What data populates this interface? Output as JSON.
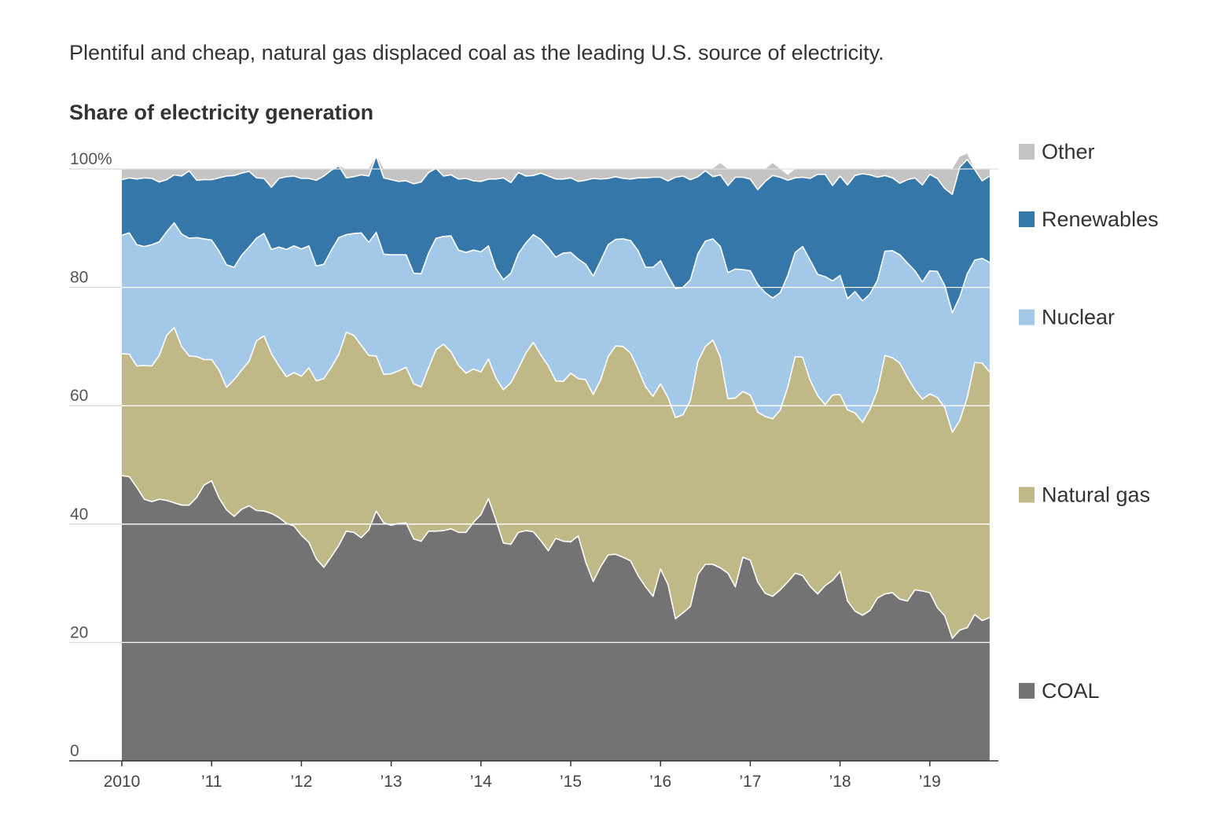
{
  "subtitle": "Plentiful and cheap, natural gas displaced coal as the leading U.S. source of electricity.",
  "chart_data": {
    "type": "area",
    "stacked": true,
    "title": "Share of electricity generation",
    "xlabel": "",
    "ylabel": "",
    "ylim": [
      0,
      100
    ],
    "yticks": [
      {
        "value": 0,
        "label": "0"
      },
      {
        "value": 20,
        "label": "20"
      },
      {
        "value": 40,
        "label": "40"
      },
      {
        "value": 60,
        "label": "60"
      },
      {
        "value": 80,
        "label": "80"
      },
      {
        "value": 100,
        "label": "100%"
      }
    ],
    "xticks": [
      {
        "year": 2010,
        "label": "2010"
      },
      {
        "year": 2011,
        "label": "’11"
      },
      {
        "year": 2012,
        "label": "’12"
      },
      {
        "year": 2013,
        "label": "’13"
      },
      {
        "year": 2014,
        "label": "’14"
      },
      {
        "year": 2015,
        "label": "’15"
      },
      {
        "year": 2016,
        "label": "’16"
      },
      {
        "year": 2017,
        "label": "’17"
      },
      {
        "year": 2018,
        "label": "’18"
      },
      {
        "year": 2019,
        "label": "’19"
      }
    ],
    "x_start": "2010-01",
    "frequency": "monthly",
    "grid": true,
    "legend_position": "right",
    "series": [
      {
        "name": "COAL",
        "color": "#737373",
        "values": [
          48.2,
          48.0,
          46.2,
          44.2,
          43.8,
          44.2,
          44.0,
          43.6,
          43.2,
          43.2,
          44.5,
          46.6,
          47.3,
          44.4,
          42.4,
          41.3,
          42.5,
          43.1,
          42.3,
          42.2,
          41.8,
          41.1,
          40.1,
          39.7,
          38.1,
          36.9,
          34.1,
          32.7,
          34.5,
          36.4,
          38.8,
          38.6,
          37.7,
          39.0,
          42.2,
          40.2,
          39.8,
          40.1,
          40.2,
          37.5,
          37.1,
          38.8,
          38.8,
          38.9,
          39.2,
          38.6,
          38.6,
          40.3,
          41.6,
          44.3,
          40.7,
          36.8,
          36.6,
          38.6,
          38.9,
          38.7,
          37.2,
          35.5,
          37.6,
          37.1,
          37.0,
          38.0,
          33.6,
          30.3,
          32.8,
          34.8,
          34.9,
          34.4,
          33.8,
          31.3,
          29.4,
          27.8,
          32.4,
          29.8,
          24.0,
          25.0,
          26.1,
          31.5,
          33.2,
          33.2,
          32.6,
          31.7,
          29.4,
          34.4,
          33.9,
          30.2,
          28.3,
          27.8,
          28.9,
          30.2,
          31.7,
          31.3,
          29.5,
          28.2,
          29.6,
          30.5,
          32.0,
          27.0,
          25.3,
          24.6,
          25.4,
          27.5,
          28.2,
          28.4,
          27.3,
          27.0,
          28.9,
          28.7,
          28.4,
          25.9,
          24.5,
          20.7,
          22.1,
          22.5,
          24.7,
          23.7,
          24.2
        ]
      },
      {
        "name": "Natural gas",
        "color": "#c0b987",
        "values": [
          20.6,
          20.7,
          20.5,
          22.6,
          22.9,
          24.3,
          27.9,
          29.6,
          26.8,
          25.2,
          23.8,
          21.2,
          20.5,
          21.6,
          20.7,
          23.1,
          23.5,
          24.4,
          28.7,
          29.6,
          27.0,
          25.6,
          24.8,
          25.9,
          26.9,
          29.5,
          30.1,
          31.9,
          32.0,
          32.3,
          33.6,
          33.3,
          32.5,
          29.5,
          26.2,
          25.1,
          25.6,
          25.8,
          26.3,
          26.2,
          26.1,
          27.6,
          30.7,
          31.5,
          29.9,
          28.2,
          26.9,
          25.9,
          24.1,
          23.6,
          24.0,
          25.9,
          27.3,
          27.7,
          30.0,
          32.0,
          31.4,
          31.2,
          26.6,
          27.0,
          28.5,
          26.6,
          30.8,
          31.6,
          31.6,
          33.5,
          35.2,
          35.6,
          35.1,
          34.9,
          33.8,
          33.8,
          31.3,
          31.6,
          34.0,
          33.5,
          34.8,
          36.0,
          36.8,
          37.9,
          35.6,
          29.5,
          31.9,
          28.0,
          27.9,
          28.7,
          29.9,
          30.0,
          30.4,
          32.9,
          36.6,
          36.9,
          34.8,
          33.5,
          30.6,
          31.3,
          29.9,
          32.3,
          33.5,
          32.6,
          34.0,
          35.1,
          40.3,
          39.7,
          39.9,
          37.8,
          33.8,
          32.4,
          33.6,
          35.5,
          35.2,
          34.8,
          35.4,
          38.9,
          42.6,
          43.5,
          41.5
        ]
      },
      {
        "name": "Nuclear",
        "color": "#a3c8e8",
        "values": [
          20.0,
          20.5,
          20.5,
          20.1,
          20.5,
          19.2,
          17.5,
          17.7,
          19.0,
          19.9,
          20.1,
          20.4,
          20.2,
          20.1,
          20.7,
          19.0,
          19.4,
          19.3,
          17.3,
          17.3,
          17.6,
          20.1,
          21.5,
          21.4,
          21.5,
          20.6,
          19.4,
          19.3,
          19.8,
          19.7,
          16.5,
          17.2,
          19.0,
          19.1,
          20.9,
          20.3,
          20.1,
          19.6,
          19.0,
          18.7,
          19.1,
          19.4,
          18.8,
          18.2,
          19.6,
          19.5,
          20.4,
          20.1,
          20.3,
          19.1,
          18.5,
          18.6,
          18.5,
          19.4,
          18.6,
          18.2,
          19.5,
          20.0,
          20.9,
          21.7,
          20.4,
          20.2,
          19.5,
          20.0,
          20.1,
          18.9,
          18.0,
          18.2,
          19.0,
          20.0,
          20.2,
          21.8,
          20.8,
          20.6,
          21.8,
          21.5,
          20.4,
          18.2,
          17.8,
          17.1,
          18.7,
          21.3,
          21.8,
          20.6,
          21.0,
          21.6,
          20.9,
          20.4,
          19.8,
          18.9,
          17.6,
          18.7,
          20.3,
          20.5,
          21.6,
          19.3,
          20.1,
          18.8,
          20.5,
          20.5,
          19.5,
          18.6,
          17.6,
          18.1,
          18.3,
          19.3,
          20.1,
          19.8,
          20.8,
          21.3,
          20.6,
          20.2,
          20.9,
          20.9,
          17.3,
          17.7,
          18.5
        ]
      },
      {
        "name": "Renewables",
        "color": "#3477a8",
        "values": [
          9.4,
          9.3,
          11.1,
          11.6,
          11.2,
          10.1,
          8.8,
          8.1,
          9.8,
          11.4,
          9.7,
          10.0,
          10.2,
          12.4,
          15.0,
          15.5,
          13.9,
          12.8,
          10.2,
          9.3,
          10.5,
          11.6,
          12.3,
          11.8,
          11.9,
          11.4,
          14.5,
          14.9,
          13.5,
          12.1,
          9.6,
          9.6,
          9.8,
          11.2,
          12.9,
          12.9,
          12.7,
          12.4,
          12.5,
          15.1,
          15.5,
          13.6,
          11.8,
          10.2,
          10.3,
          12.0,
          12.5,
          11.7,
          11.9,
          11.3,
          15.1,
          17.2,
          15.3,
          13.7,
          11.3,
          10.0,
          11.2,
          12.1,
          13.2,
          12.5,
          12.6,
          13.1,
          14.2,
          16.5,
          13.8,
          11.2,
          10.6,
          10.2,
          10.4,
          12.3,
          15.1,
          15.2,
          14.1,
          16.0,
          18.8,
          18.8,
          16.9,
          13.0,
          11.9,
          10.5,
          12.1,
          14.7,
          15.5,
          15.6,
          15.5,
          16.0,
          18.8,
          20.7,
          19.5,
          16.1,
          12.6,
          11.7,
          13.8,
          16.9,
          17.3,
          16.1,
          16.8,
          19.2,
          19.6,
          21.5,
          20.1,
          17.4,
          12.8,
          12.3,
          12.1,
          14.1,
          15.7,
          16.4,
          16.3,
          15.7,
          16.4,
          20.0,
          21.9,
          19.3,
          15.3,
          13.1,
          14.6
        ]
      },
      {
        "name": "Other",
        "color": "#c4c4c4",
        "values": [
          1.8,
          1.5,
          1.7,
          1.5,
          1.6,
          2.2,
          1.8,
          1.0,
          1.2,
          0.3,
          1.9,
          1.8,
          1.8,
          1.5,
          1.2,
          1.1,
          0.7,
          0.4,
          1.5,
          1.6,
          3.1,
          1.6,
          1.3,
          1.2,
          1.6,
          1.6,
          1.9,
          1.2,
          0.2,
          0.0,
          1.5,
          1.3,
          1.0,
          1.2,
          0.0,
          1.5,
          1.8,
          2.1,
          2.0,
          2.5,
          2.2,
          0.6,
          0.0,
          1.2,
          1.0,
          1.7,
          1.6,
          2.0,
          2.1,
          1.7,
          1.7,
          1.5,
          2.3,
          0.6,
          1.2,
          1.1,
          0.7,
          1.2,
          1.7,
          1.7,
          1.5,
          2.1,
          1.9,
          1.6,
          1.7,
          1.6,
          1.3,
          1.6,
          1.7,
          1.5,
          1.5,
          1.4,
          1.4,
          2.0,
          1.4,
          1.2,
          1.8,
          1.3,
          0.3,
          1.4,
          2.0,
          2.8,
          1.4,
          1.4,
          1.7,
          3.5,
          2.1,
          2.1,
          1.4,
          0.9,
          1.5,
          1.4,
          1.6,
          0.9,
          0.9,
          2.9,
          1.2,
          2.7,
          1.1,
          0.8,
          1.0,
          1.3,
          1.1,
          1.5,
          2.4,
          1.8,
          1.5,
          2.7,
          0.9,
          1.6,
          3.3,
          4.3,
          1.8,
          1.0,
          0.0,
          2.0,
          1.2
        ]
      }
    ]
  }
}
